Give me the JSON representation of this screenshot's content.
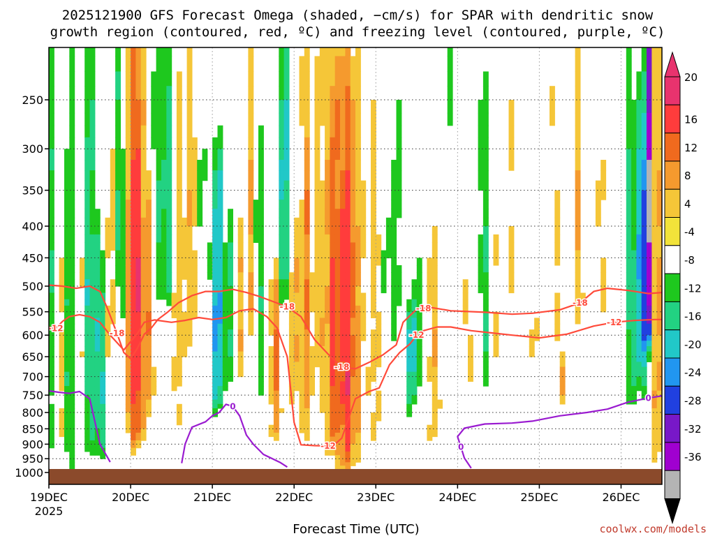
{
  "chart_data": {
    "type": "heatmap",
    "title_line1": "2025121900 GFS Forecast Omega (shaded, −cm/s) for SPAR with dendritic snow",
    "title_line2": "growth region (contoured, red, ºC) and freezing level (contoured, purple, ºC)",
    "xlabel": "Forecast Time (UTC)",
    "ylabel": "",
    "credit": "coolwx.com/models",
    "x_range_hours": [
      0,
      180
    ],
    "x_ticks": [
      {
        "hour": 0,
        "label": "19DEC",
        "sublabel": "2025"
      },
      {
        "hour": 24,
        "label": "20DEC"
      },
      {
        "hour": 48,
        "label": "21DEC"
      },
      {
        "hour": 72,
        "label": "22DEC"
      },
      {
        "hour": 96,
        "label": "23DEC"
      },
      {
        "hour": 120,
        "label": "24DEC"
      },
      {
        "hour": 144,
        "label": "25DEC"
      },
      {
        "hour": 168,
        "label": "26DEC"
      }
    ],
    "y_axis": "pressure (hPa), inverted, log-scaled",
    "y_range": [
      1050,
      200
    ],
    "y_ticks": [
      1000,
      950,
      900,
      850,
      800,
      750,
      700,
      650,
      600,
      550,
      500,
      450,
      400,
      350,
      300,
      250
    ],
    "colorbar": {
      "labels": [
        "20",
        "16",
        "12",
        "8",
        "4",
        "-4",
        "-8",
        "-12",
        "-16",
        "-20",
        "-24",
        "-28",
        "-32",
        "-36"
      ],
      "colors": [
        "#e8336e",
        "#ff3c3c",
        "#f06a1e",
        "#f59a2e",
        "#f5c638",
        "#f2e33a",
        "#ffffff",
        "#1ec81e",
        "#22d282",
        "#21c8c8",
        "#2196f0",
        "#2040e0",
        "#7818c8",
        "#a000d0",
        "#b4b4b4"
      ]
    },
    "background_color": "#8b4a2b",
    "dendritic_contours": [
      {
        "level": "-12",
        "label": "-12",
        "color": "#ff4a3a",
        "points": [
          [
            0,
            582
          ],
          [
            2,
            585
          ],
          [
            4,
            570
          ],
          [
            6,
            560
          ],
          [
            9,
            556
          ],
          [
            12,
            560
          ],
          [
            15,
            572
          ],
          [
            18,
            600
          ],
          [
            22,
            634
          ],
          [
            26,
            596
          ],
          [
            28,
            572
          ],
          [
            31,
            567
          ],
          [
            36,
            572
          ],
          [
            40,
            568
          ],
          [
            44,
            562
          ],
          [
            48,
            566
          ],
          [
            52,
            562
          ],
          [
            56,
            548
          ],
          [
            60,
            544
          ],
          [
            64,
            560
          ],
          [
            67,
            584
          ],
          [
            70,
            650
          ],
          [
            72,
            830
          ],
          [
            74,
            902
          ],
          [
            78,
            905
          ],
          [
            82,
            906
          ],
          [
            84,
            900
          ],
          [
            86,
            880
          ],
          [
            90,
            760
          ],
          [
            94,
            740
          ],
          [
            97,
            730
          ],
          [
            100,
            670
          ],
          [
            103,
            640
          ],
          [
            106,
            620
          ],
          [
            108,
            600
          ],
          [
            110,
            590
          ],
          [
            114,
            582
          ],
          [
            118,
            582
          ],
          [
            124,
            590
          ],
          [
            130,
            595
          ],
          [
            136,
            600
          ],
          [
            144,
            606
          ],
          [
            152,
            598
          ],
          [
            160,
            580
          ],
          [
            166,
            572
          ],
          [
            172,
            568
          ],
          [
            178,
            566
          ],
          [
            180,
            566
          ]
        ]
      },
      {
        "level": "-18",
        "label": "-18",
        "color": "#ff4a3a",
        "points": [
          [
            0,
            498
          ],
          [
            4,
            500
          ],
          [
            8,
            504
          ],
          [
            12,
            500
          ],
          [
            15,
            510
          ],
          [
            17,
            540
          ],
          [
            20,
            596
          ],
          [
            22,
            640
          ],
          [
            24,
            655
          ],
          [
            26,
            630
          ],
          [
            28,
            598
          ],
          [
            30,
            585
          ],
          [
            32,
            566
          ],
          [
            35,
            550
          ],
          [
            38,
            532
          ],
          [
            42,
            518
          ],
          [
            46,
            510
          ],
          [
            50,
            510
          ],
          [
            54,
            506
          ],
          [
            58,
            512
          ],
          [
            62,
            520
          ],
          [
            66,
            530
          ],
          [
            70,
            540
          ],
          [
            74,
            560
          ],
          [
            78,
            610
          ],
          [
            82,
            644
          ],
          [
            86,
            676
          ],
          [
            90,
            680
          ],
          [
            94,
            664
          ],
          [
            98,
            646
          ],
          [
            102,
            622
          ],
          [
            104,
            572
          ],
          [
            106,
            558
          ],
          [
            108,
            545
          ],
          [
            110,
            543
          ],
          [
            112,
            541
          ],
          [
            118,
            548
          ],
          [
            128,
            551
          ],
          [
            136,
            555
          ],
          [
            142,
            553
          ],
          [
            150,
            546
          ],
          [
            156,
            532
          ],
          [
            160,
            510
          ],
          [
            164,
            504
          ],
          [
            170,
            508
          ],
          [
            176,
            514
          ],
          [
            180,
            512
          ]
        ]
      }
    ],
    "freezing_contours": [
      {
        "level": "0",
        "label": "0",
        "color": "#9a1bd0",
        "points": [
          [
            0,
            738
          ],
          [
            3,
            742
          ],
          [
            6,
            745
          ],
          [
            9,
            740
          ],
          [
            12,
            760
          ],
          [
            15,
            900
          ],
          [
            18,
            962
          ]
        ]
      },
      {
        "level": "0",
        "label": "0",
        "color": "#9a1bd0",
        "points": [
          [
            39,
            966
          ],
          [
            40,
            900
          ],
          [
            42,
            845
          ],
          [
            46,
            828
          ],
          [
            48,
            810
          ],
          [
            50,
            800
          ],
          [
            52,
            776
          ],
          [
            54,
            782
          ],
          [
            56,
            810
          ],
          [
            58,
            870
          ],
          [
            60,
            900
          ],
          [
            63,
            935
          ],
          [
            68,
            964
          ],
          [
            70,
            980
          ]
        ]
      },
      {
        "level": "0",
        "label": "0",
        "color": "#9a1bd0",
        "points": [
          [
            124,
            984
          ],
          [
            122,
            948
          ],
          [
            121,
            910
          ],
          [
            120,
            875
          ],
          [
            122,
            848
          ],
          [
            128,
            835
          ],
          [
            136,
            832
          ],
          [
            142,
            826
          ],
          [
            150,
            810
          ],
          [
            158,
            800
          ],
          [
            164,
            790
          ],
          [
            170,
            770
          ],
          [
            176,
            758
          ],
          [
            180,
            752
          ]
        ]
      }
    ]
  }
}
